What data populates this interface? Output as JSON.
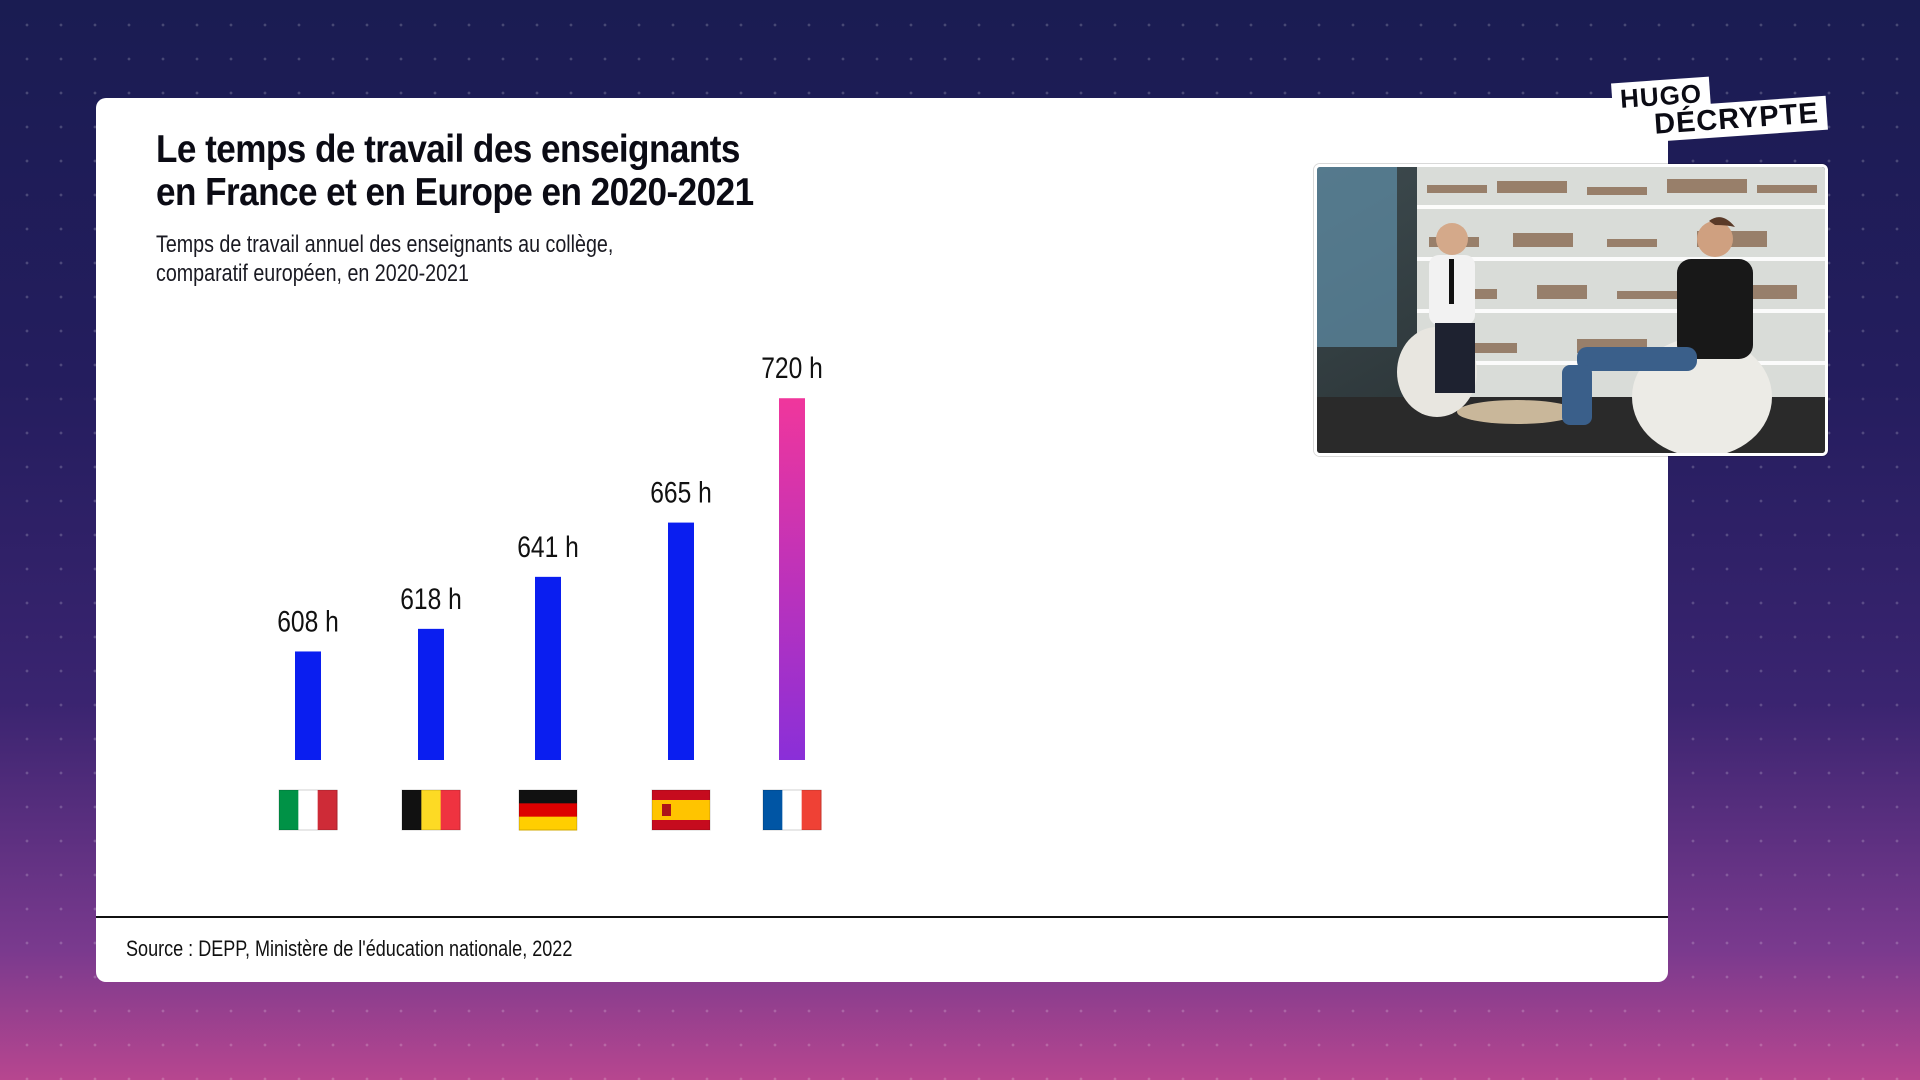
{
  "chart_data": {
    "type": "bar",
    "title": "Le temps de travail des enseignants\nen France et en Europe en 2020-2021",
    "subtitle": "Temps de travail annuel des enseignants au collège,\ncomparatif européen, en 2020-2021",
    "categories": [
      "Italie",
      "Belgique",
      "Allemagne",
      "Espagne",
      "France"
    ],
    "values": [
      608,
      618,
      641,
      665,
      720
    ],
    "value_labels": [
      "608 h",
      "618 h",
      "641 h",
      "665 h",
      "720 h"
    ],
    "xlabel": "",
    "ylabel": "",
    "ylim": [
      560,
      740
    ],
    "grid": false,
    "legend": "none",
    "bar_color": "#0a1ef0",
    "highlight_category": "France",
    "highlight_gradient": [
      "#f0369c",
      "#8a2fd8"
    ],
    "source": "Source : DEPP, Ministère de l'éducation nationale, 2022"
  },
  "flags": [
    {
      "category": "Italie",
      "icon": "flag-italy-icon",
      "colors": [
        "#009246",
        "#ffffff",
        "#ce2b37"
      ],
      "layout": "vertical"
    },
    {
      "category": "Belgique",
      "icon": "flag-belgium-icon",
      "colors": [
        "#111111",
        "#fdda24",
        "#ef3340"
      ],
      "layout": "vertical"
    },
    {
      "category": "Allemagne",
      "icon": "flag-germany-icon",
      "colors": [
        "#111111",
        "#dd0000",
        "#ffce00"
      ],
      "layout": "horizontal"
    },
    {
      "category": "Espagne",
      "icon": "flag-spain-icon",
      "colors": [
        "#c60b1e",
        "#ffc400",
        "#c60b1e"
      ],
      "layout": "spain"
    },
    {
      "category": "France",
      "icon": "flag-france-icon",
      "colors": [
        "#0055a4",
        "#ffffff",
        "#ef4135"
      ],
      "layout": "vertical"
    }
  ],
  "logo": {
    "line1": "HUGO",
    "line2": "DÉCRYPTE"
  },
  "video": {
    "icon": "interview-video-frame"
  },
  "colors": {
    "background_top": "#1a1c52",
    "background_bottom": "#b7468f",
    "card": "#ffffff"
  }
}
